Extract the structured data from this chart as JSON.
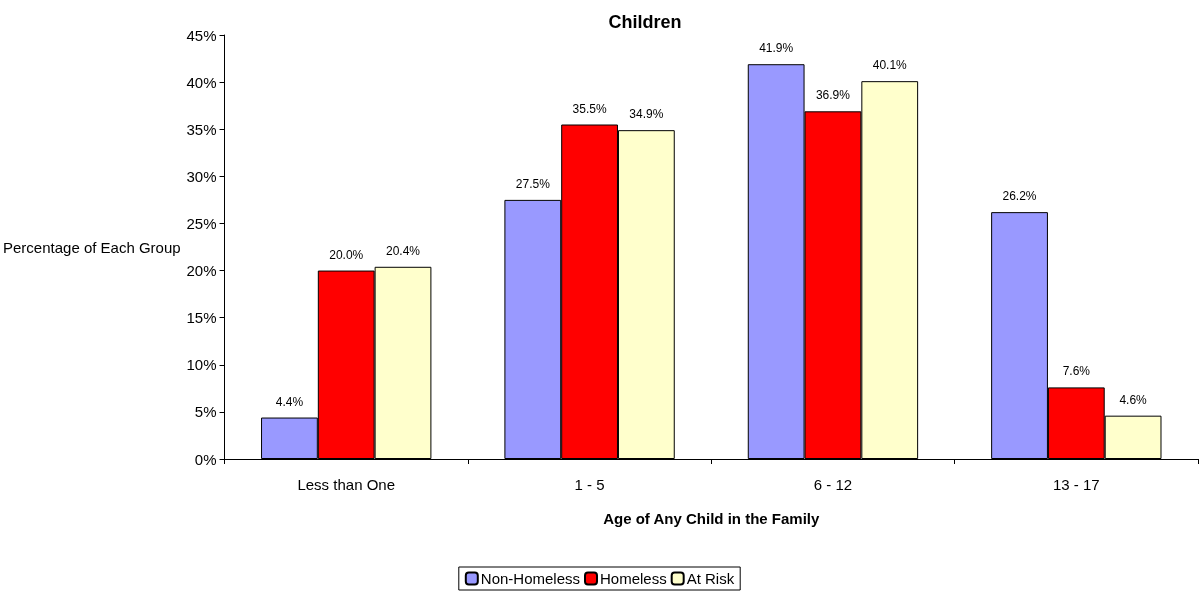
{
  "chart_data": {
    "type": "bar",
    "title": "Children",
    "xlabel": "Age of Any Child in the Family",
    "ylabel": "Percentage of Each Group",
    "categories": [
      "Less than One",
      "1 - 5",
      "6 - 12",
      "13 - 17"
    ],
    "series": [
      {
        "name": "Non-Homeless",
        "color": "#9999ff",
        "values": [
          4.4,
          27.5,
          41.9,
          26.2
        ],
        "value_labels": [
          "4.4%",
          "27.5%",
          "41.9%",
          "26.2%"
        ]
      },
      {
        "name": "Homeless",
        "color": "#ff0000",
        "values": [
          20.0,
          35.5,
          36.9,
          7.6
        ],
        "value_labels": [
          "20.0%",
          "35.5%",
          "36.9%",
          "7.6%"
        ]
      },
      {
        "name": "At Risk",
        "color": "#ffffcc",
        "values": [
          20.4,
          34.9,
          40.1,
          4.6
        ],
        "value_labels": [
          "20.4%",
          "34.9%",
          "40.1%",
          "4.6%"
        ]
      }
    ],
    "ylim": [
      0,
      45
    ],
    "yticks": [
      {
        "value": 0,
        "label": "0%"
      },
      {
        "value": 5,
        "label": "5%"
      },
      {
        "value": 10,
        "label": "10%"
      },
      {
        "value": 15,
        "label": "15%"
      },
      {
        "value": 20,
        "label": "20%"
      },
      {
        "value": 25,
        "label": "25%"
      },
      {
        "value": 30,
        "label": "30%"
      },
      {
        "value": 35,
        "label": "35%"
      },
      {
        "value": 40,
        "label": "40%"
      },
      {
        "value": 45,
        "label": "45%"
      }
    ],
    "grid": false,
    "legend": "bottom"
  }
}
